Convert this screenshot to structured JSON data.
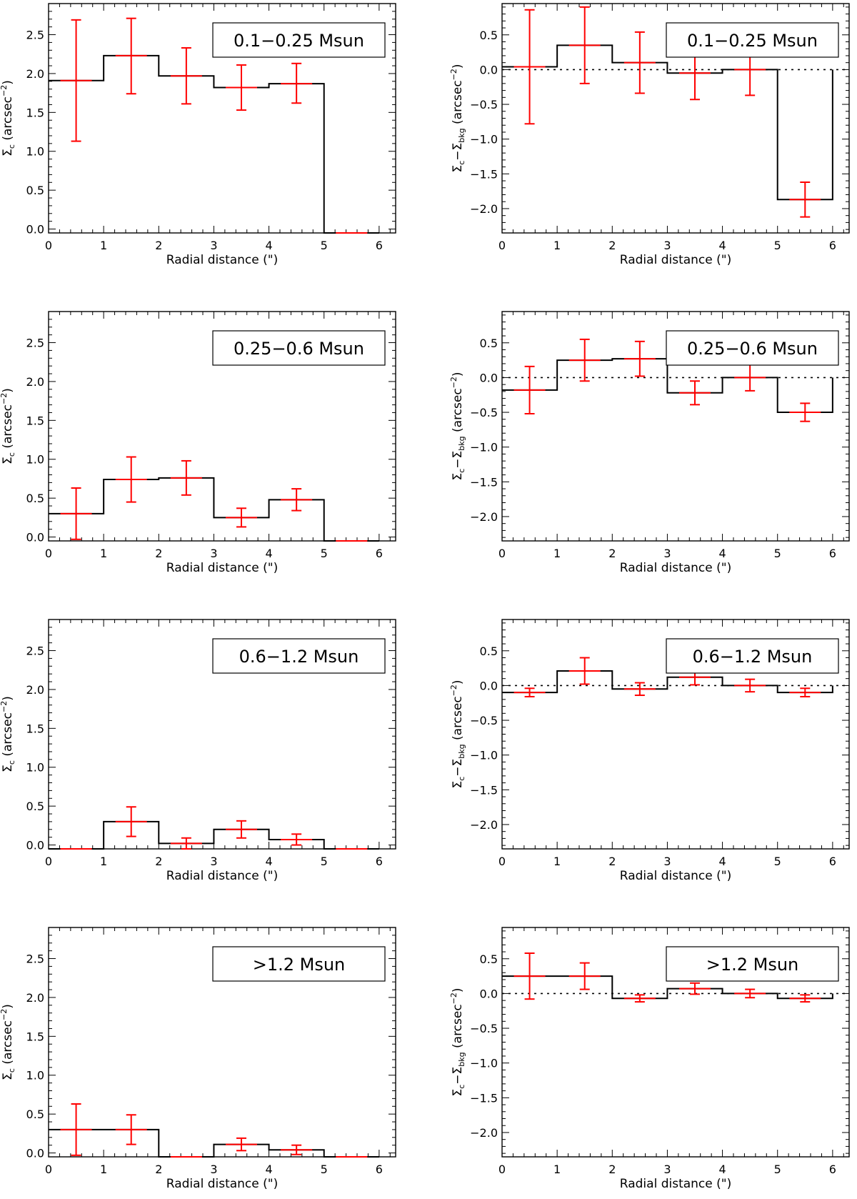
{
  "figure": {
    "xlabel": "Radial distance (\")",
    "ylabel_left": {
      "sym": "Σ",
      "sub": "c",
      "unit": "(arcsec",
      "exp": "−2",
      "close": ")"
    },
    "ylabel_right": {
      "sym": "Σ",
      "sub": "c",
      "minus": "−Σ",
      "sub2": "bkg",
      "unit": "(arcsec",
      "exp": "−2",
      "close": ")"
    }
  },
  "chart_data": [
    {
      "type": "step-errorbar",
      "title": "0.1−0.25 Msun",
      "column": "left",
      "xlabel": "Radial distance (\")",
      "ylabel": "Σc (arcsec−2)",
      "xlim": [
        0,
        6.3
      ],
      "ylim": [
        -0.05,
        2.9
      ],
      "x_ticks": [
        0,
        1,
        2,
        3,
        4,
        5,
        6
      ],
      "y_ticks": [
        0.0,
        0.5,
        1.0,
        1.5,
        2.0,
        2.5
      ],
      "bin_edges": [
        0,
        1,
        2,
        3,
        4,
        5,
        6
      ],
      "values": [
        1.91,
        2.23,
        1.97,
        1.82,
        1.87,
        -0.05
      ],
      "err_low": [
        0.78,
        0.49,
        0.36,
        0.29,
        0.25,
        0.0
      ],
      "err_high": [
        0.78,
        0.48,
        0.36,
        0.29,
        0.26,
        0.0
      ],
      "zero_line": false
    },
    {
      "type": "step-errorbar",
      "title": "0.1−0.25 Msun",
      "column": "right",
      "xlabel": "Radial distance (\")",
      "ylabel": "Σc−Σbkg (arcsec−2)",
      "xlim": [
        0,
        6.3
      ],
      "ylim": [
        -2.35,
        0.95
      ],
      "x_ticks": [
        0,
        1,
        2,
        3,
        4,
        5,
        6
      ],
      "y_ticks": [
        0.5,
        0.0,
        -0.5,
        -1.0,
        -1.5,
        -2.0
      ],
      "bin_edges": [
        0,
        1,
        2,
        3,
        4,
        5,
        6
      ],
      "values": [
        0.04,
        0.35,
        0.1,
        -0.05,
        0.0,
        -1.87
      ],
      "err_low": [
        0.82,
        0.55,
        0.44,
        0.38,
        0.37,
        0.25
      ],
      "err_high": [
        0.82,
        0.55,
        0.44,
        0.38,
        0.37,
        0.25
      ],
      "zero_line": true
    },
    {
      "type": "step-errorbar",
      "title": "0.25−0.6 Msun",
      "column": "left",
      "xlabel": "Radial distance (\")",
      "ylabel": "Σc (arcsec−2)",
      "xlim": [
        0,
        6.3
      ],
      "ylim": [
        -0.05,
        2.9
      ],
      "x_ticks": [
        0,
        1,
        2,
        3,
        4,
        5,
        6
      ],
      "y_ticks": [
        0.0,
        0.5,
        1.0,
        1.5,
        2.0,
        2.5
      ],
      "bin_edges": [
        0,
        1,
        2,
        3,
        4,
        5,
        6
      ],
      "values": [
        0.3,
        0.74,
        0.76,
        0.25,
        0.48,
        -0.05
      ],
      "err_low": [
        0.33,
        0.29,
        0.22,
        0.12,
        0.14,
        0.0
      ],
      "err_high": [
        0.33,
        0.29,
        0.22,
        0.12,
        0.14,
        0.0
      ],
      "zero_line": false
    },
    {
      "type": "step-errorbar",
      "title": "0.25−0.6 Msun",
      "column": "right",
      "xlabel": "Radial distance (\")",
      "ylabel": "Σc−Σbkg (arcsec−2)",
      "xlim": [
        0,
        6.3
      ],
      "ylim": [
        -2.35,
        0.95
      ],
      "x_ticks": [
        0,
        1,
        2,
        3,
        4,
        5,
        6
      ],
      "y_ticks": [
        0.5,
        0.0,
        -0.5,
        -1.0,
        -1.5,
        -2.0
      ],
      "bin_edges": [
        0,
        1,
        2,
        3,
        4,
        5,
        6
      ],
      "values": [
        -0.18,
        0.25,
        0.27,
        -0.22,
        0.0,
        -0.5
      ],
      "err_low": [
        0.34,
        0.3,
        0.25,
        0.17,
        0.19,
        0.13
      ],
      "err_high": [
        0.34,
        0.3,
        0.25,
        0.17,
        0.19,
        0.13
      ],
      "zero_line": true
    },
    {
      "type": "step-errorbar",
      "title": "0.6−1.2 Msun",
      "column": "left",
      "xlabel": "Radial distance (\")",
      "ylabel": "Σc (arcsec−2)",
      "xlim": [
        0,
        6.3
      ],
      "ylim": [
        -0.05,
        2.9
      ],
      "x_ticks": [
        0,
        1,
        2,
        3,
        4,
        5,
        6
      ],
      "y_ticks": [
        0.0,
        0.5,
        1.0,
        1.5,
        2.0,
        2.5
      ],
      "bin_edges": [
        0,
        1,
        2,
        3,
        4,
        5,
        6
      ],
      "values": [
        -0.05,
        0.3,
        0.02,
        0.2,
        0.07,
        -0.05
      ],
      "err_low": [
        0.0,
        0.19,
        0.07,
        0.11,
        0.07,
        0.0
      ],
      "err_high": [
        0.0,
        0.19,
        0.07,
        0.11,
        0.07,
        0.0
      ],
      "zero_line": false
    },
    {
      "type": "step-errorbar",
      "title": "0.6−1.2 Msun",
      "column": "right",
      "xlabel": "Radial distance (\")",
      "ylabel": "Σc−Σbkg (arcsec−2)",
      "xlim": [
        0,
        6.3
      ],
      "ylim": [
        -2.35,
        0.95
      ],
      "x_ticks": [
        0,
        1,
        2,
        3,
        4,
        5,
        6
      ],
      "y_ticks": [
        0.5,
        0.0,
        -0.5,
        -1.0,
        -1.5,
        -2.0
      ],
      "bin_edges": [
        0,
        1,
        2,
        3,
        4,
        5,
        6
      ],
      "values": [
        -0.1,
        0.21,
        -0.05,
        0.12,
        0.0,
        -0.1
      ],
      "err_low": [
        0.06,
        0.19,
        0.09,
        0.11,
        0.09,
        0.06
      ],
      "err_high": [
        0.06,
        0.19,
        0.09,
        0.11,
        0.09,
        0.06
      ],
      "zero_line": true
    },
    {
      "type": "step-errorbar",
      "title": ">1.2 Msun",
      "column": "left",
      "xlabel": "Radial distance (\")",
      "ylabel": "Σc (arcsec−2)",
      "xlim": [
        0,
        6.3
      ],
      "ylim": [
        -0.05,
        2.9
      ],
      "x_ticks": [
        0,
        1,
        2,
        3,
        4,
        5,
        6
      ],
      "y_ticks": [
        0.0,
        0.5,
        1.0,
        1.5,
        2.0,
        2.5
      ],
      "bin_edges": [
        0,
        1,
        2,
        3,
        4,
        5,
        6
      ],
      "values": [
        0.3,
        0.3,
        -0.05,
        0.11,
        0.04,
        -0.05
      ],
      "err_low": [
        0.33,
        0.19,
        0.0,
        0.08,
        0.06,
        0.0
      ],
      "err_high": [
        0.33,
        0.19,
        0.0,
        0.08,
        0.06,
        0.0
      ],
      "zero_line": false
    },
    {
      "type": "step-errorbar",
      "title": ">1.2 Msun",
      "column": "right",
      "xlabel": "Radial distance (\")",
      "ylabel": "Σc−Σbkg (arcsec−2)",
      "xlim": [
        0,
        6.3
      ],
      "ylim": [
        -2.35,
        0.95
      ],
      "x_ticks": [
        0,
        1,
        2,
        3,
        4,
        5,
        6
      ],
      "y_ticks": [
        0.5,
        0.0,
        -0.5,
        -1.0,
        -1.5,
        -2.0
      ],
      "bin_edges": [
        0,
        1,
        2,
        3,
        4,
        5,
        6
      ],
      "values": [
        0.25,
        0.25,
        -0.07,
        0.07,
        0.0,
        -0.07
      ],
      "err_low": [
        0.33,
        0.19,
        0.05,
        0.08,
        0.06,
        0.05
      ],
      "err_high": [
        0.33,
        0.19,
        0.05,
        0.08,
        0.06,
        0.05
      ],
      "zero_line": true
    }
  ]
}
